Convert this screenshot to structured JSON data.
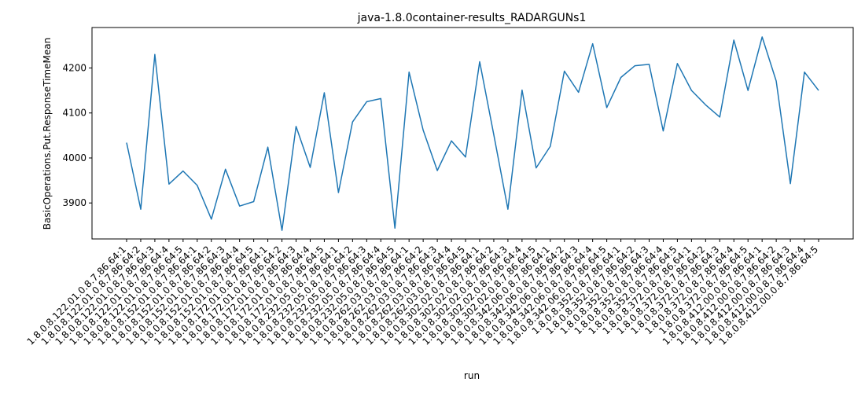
{
  "chart_data": {
    "type": "line",
    "title": "java-1.8.0container-results_RADARGUNs1",
    "xlabel": "run",
    "ylabel": "BasicOperations.Put.ResponseTimeMean",
    "ylim": [
      3820,
      4290
    ],
    "yticks": [
      3900,
      4000,
      4100,
      4200
    ],
    "grid": false,
    "line_color": "#1f77b4",
    "categories": [
      "1.8.0.8.122.01.0.8.7.86.64:1",
      "1.8.0.8.122.01.0.8.7.86.64:2",
      "1.8.0.8.122.01.0.8.7.86.64:3",
      "1.8.0.8.122.01.0.8.7.86.64:4",
      "1.8.0.8.122.01.0.8.7.86.64:5",
      "1.8.0.8.152.01.0.8.7.86.64:1",
      "1.8.0.8.152.01.0.8.7.86.64:2",
      "1.8.0.8.152.01.0.8.7.86.64:3",
      "1.8.0.8.152.01.0.8.7.86.64:4",
      "1.8.0.8.152.01.0.8.7.86.64:5",
      "1.8.0.8.172.01.0.8.7.86.64:1",
      "1.8.0.8.172.01.0.8.7.86.64:2",
      "1.8.0.8.172.01.0.8.7.86.64:3",
      "1.8.0.8.172.01.0.8.7.86.64:4",
      "1.8.0.8.172.01.0.8.7.86.64:5",
      "1.8.0.8.232.05.0.8.7.86.64:1",
      "1.8.0.8.232.05.0.8.7.86.64:2",
      "1.8.0.8.232.05.0.8.7.86.64:3",
      "1.8.0.8.232.05.0.8.7.86.64:4",
      "1.8.0.8.232.05.0.8.7.86.64:5",
      "1.8.0.8.262.03.0.8.7.86.64:1",
      "1.8.0.8.262.03.0.8.7.86.64:2",
      "1.8.0.8.262.03.0.8.7.86.64:3",
      "1.8.0.8.262.03.0.8.7.86.64:4",
      "1.8.0.8.262.03.0.8.7.86.64:5",
      "1.8.0.8.302.02.0.8.7.86.64:1",
      "1.8.0.8.302.02.0.8.7.86.64:2",
      "1.8.0.8.302.02.0.8.7.86.64:3",
      "1.8.0.8.302.02.0.8.7.86.64:4",
      "1.8.0.8.302.02.0.8.7.86.64:5",
      "1.8.0.8.342.06.0.8.7.86.64:1",
      "1.8.0.8.342.06.0.8.7.86.64:2",
      "1.8.0.8.342.06.0.8.7.86.64:3",
      "1.8.0.8.342.06.0.8.7.86.64:4",
      "1.8.0.8.342.06.0.8.7.86.64:5",
      "1.8.0.8.352.0.8.7.86.64:1",
      "1.8.0.8.352.0.8.7.86.64:2",
      "1.8.0.8.352.0.8.7.86.64:3",
      "1.8.0.8.352.0.8.7.86.64:4",
      "1.8.0.8.352.0.8.7.86.64:5",
      "1.8.0.8.372.0.8.7.86.64:1",
      "1.8.0.8.372.0.8.7.86.64:2",
      "1.8.0.8.372.0.8.7.86.64:3",
      "1.8.0.8.372.0.8.7.86.64:4",
      "1.8.0.8.372.0.8.7.86.64:5",
      "1.8.0.8.412.00.0.8.7.86.64:1",
      "1.8.0.8.412.00.0.8.7.86.64:2",
      "1.8.0.8.412.00.0.8.7.86.64:3",
      "1.8.0.8.412.00.0.8.7.86.64:4",
      "1.8.0.8.412.00.0.8.7.86.64:5"
    ],
    "values": [
      4034,
      3886,
      4230,
      3942,
      3971,
      3939,
      3864,
      3975,
      3893,
      3903,
      4024,
      3839,
      4070,
      3979,
      4145,
      3923,
      4080,
      4125,
      4132,
      3844,
      4191,
      4062,
      3972,
      4038,
      4002,
      4214,
      4052,
      3886,
      4151,
      3978,
      4026,
      4193,
      4146,
      4254,
      4112,
      4179,
      4205,
      4208,
      4060,
      4210,
      4150,
      4118,
      4091,
      4262,
      4150,
      4269,
      4171,
      3943,
      4191,
      4150
    ]
  }
}
